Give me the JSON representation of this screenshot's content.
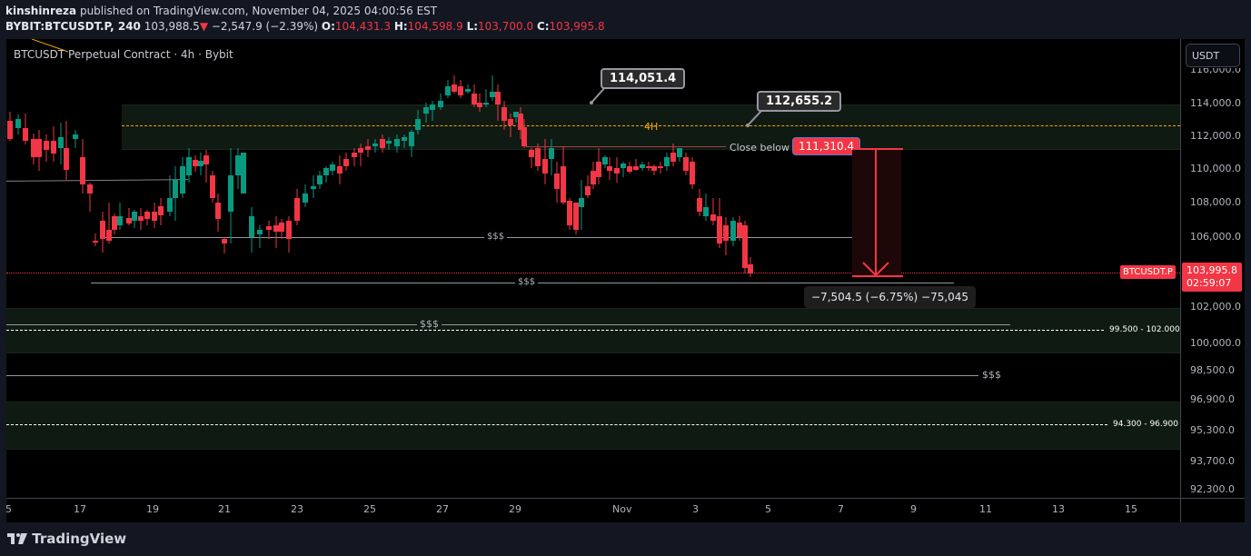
{
  "header": {
    "publisher": "kinshinreza",
    "published_text": "published on TradingView.com, November 04, 2025 04:00:56 EST",
    "symbol": "BYBIT:BTCUSDT.P, 240",
    "last": "103,988.5",
    "change_arrow": "▼",
    "change": "−2,547.9 (−2.39%)",
    "o_label": "O:",
    "o": "104,431.3",
    "h_label": "H:",
    "h": "104,598.9",
    "l_label": "L:",
    "l": "103,700.0",
    "c_label": "C:",
    "c": "103,995.8"
  },
  "chart": {
    "title": "BTCUSDT Perpetual Contract · 4h · Bybit",
    "currency_button": "USDT",
    "colors": {
      "up": "#089981",
      "down": "#f23645",
      "zone": "#0f1a12",
      "level": "#f7a600"
    },
    "annotations": {
      "callout_high": "114,051.4",
      "callout_mid": "112,655.2",
      "label_4h": "4H",
      "close_below_text": "Close below",
      "close_below_value": "111,310.4",
      "liquidity_1": "$$$",
      "liquidity_2": "$$$",
      "liquidity_3": "$$$",
      "liquidity_4": "$$$",
      "measure": "−7,504.5 (−6.75%) −75,045",
      "zone_1": "99.500 - 102.000",
      "zone_2": "94.300 - 96.900"
    },
    "last_price": {
      "symbol": "BTCUSDT.P",
      "price": "103,995.8",
      "countdown": "02:59:07"
    },
    "y_axis": [
      "116,000.0",
      "114,000.0",
      "112,000.0",
      "110,000.0",
      "108,000.0",
      "106,000.0",
      "102,000.0",
      "100,000.0",
      "98,500.0",
      "96,900.0",
      "95,300.0",
      "93,700.0",
      "92,300.0"
    ],
    "x_axis": [
      "5",
      "17",
      "19",
      "21",
      "23",
      "25",
      "27",
      "29",
      "Nov",
      "3",
      "5",
      "7",
      "9",
      "11",
      "13",
      "15"
    ]
  },
  "footer": {
    "logo_text": "TradingView"
  }
}
